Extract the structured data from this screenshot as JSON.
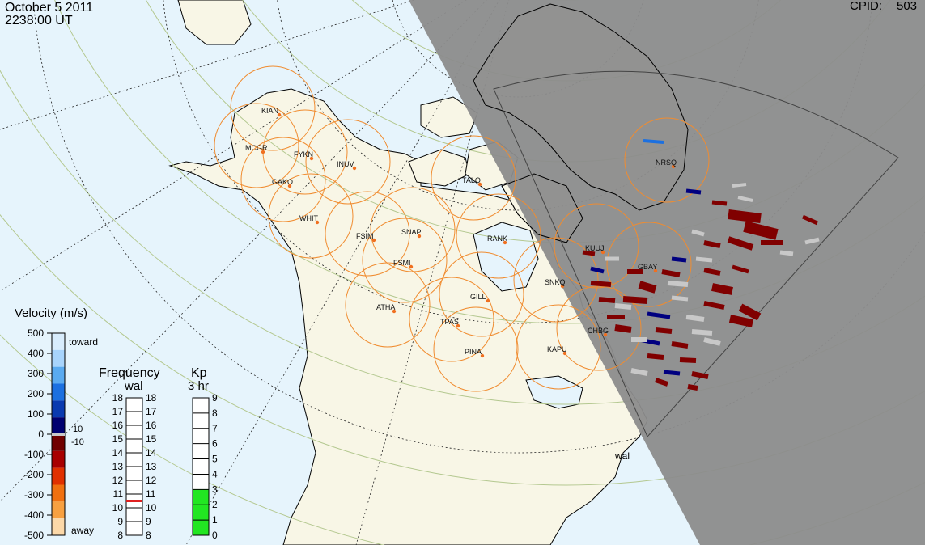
{
  "header": {
    "date": "October 5 2011",
    "time": "2238:00 UT",
    "cpid_label": "CPID:",
    "cpid_value": "503"
  },
  "radar_site": "wal",
  "stations": [
    {
      "code": "KIAN"
    },
    {
      "code": "MCGR"
    },
    {
      "code": "FYKN"
    },
    {
      "code": "INUV"
    },
    {
      "code": "GAKO"
    },
    {
      "code": "TALO"
    },
    {
      "code": "WHIT"
    },
    {
      "code": "FSIM"
    },
    {
      "code": "SNAP"
    },
    {
      "code": "FSMI"
    },
    {
      "code": "RANK"
    },
    {
      "code": "KUUJ"
    },
    {
      "code": "GBAY"
    },
    {
      "code": "NRSQ"
    },
    {
      "code": "SNKQ"
    },
    {
      "code": "ATHA"
    },
    {
      "code": "GILL"
    },
    {
      "code": "TPAS"
    },
    {
      "code": "PINA"
    },
    {
      "code": "KAPU"
    },
    {
      "code": "CHBG"
    }
  ],
  "velocity_scale": {
    "title": "Velocity (m/s)",
    "ticks": [
      "500",
      "400",
      "300",
      "200",
      "100",
      "0",
      "-100",
      "-200",
      "-300",
      "-400",
      "-500"
    ],
    "toward_label": "toward",
    "away_label": "away",
    "threshold_pos": "10",
    "threshold_neg": "-10",
    "colors": [
      "#d8ecfc",
      "#a8d4fc",
      "#5aaaf0",
      "#1c70e0",
      "#0a3ab0",
      "#000070",
      "#700000",
      "#a80000",
      "#e03000",
      "#f07010",
      "#f8a040",
      "#fcd8a8"
    ]
  },
  "frequency_scale": {
    "title": "Frequency",
    "subtitle": "wal",
    "left_ticks": [
      "18",
      "17",
      "16",
      "15",
      "14",
      "13",
      "12",
      "11",
      "10",
      "9",
      "8"
    ],
    "right_ticks": [
      "18",
      "17",
      "16",
      "15",
      "14",
      "13",
      "12",
      "11",
      "10",
      "9",
      "8"
    ],
    "marker_value": 10.5
  },
  "kp_scale": {
    "title": "Kp",
    "subtitle": "3 hr",
    "ticks": [
      "9",
      "8",
      "7",
      "6",
      "5",
      "4",
      "3",
      "2",
      "1",
      "0"
    ],
    "level": 3
  },
  "colors": {
    "ocean": "#e6f4fc",
    "land": "#f8f6e6",
    "night": "#8c8c8c",
    "fov_circle": "#f08c30",
    "grid_lat": "#b4c890",
    "away_dark": "#800000",
    "toward_dark": "#000080",
    "ground_scatter": "#c8c8c8",
    "kp_fill": "#22e622"
  }
}
